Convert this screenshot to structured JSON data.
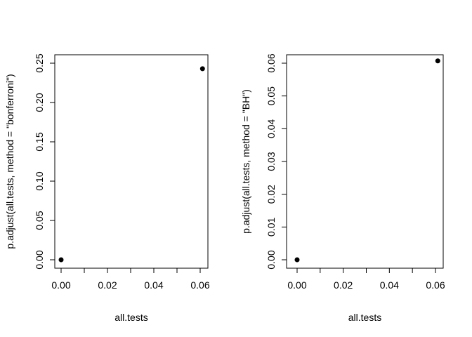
{
  "chart_data": [
    {
      "type": "scatter",
      "xlabel": "all.tests",
      "ylabel": "p.adjust(all.tests, method = \"bonferroni\")",
      "xlim": [
        0,
        0.06
      ],
      "ylim": [
        0,
        0.25
      ],
      "xticks": [
        0.0,
        0.01,
        0.02,
        0.03,
        0.04,
        0.05,
        0.06
      ],
      "xtick_labels": [
        "0.00",
        "",
        "0.02",
        "",
        "0.04",
        "",
        "0.06"
      ],
      "yticks": [
        0.0,
        0.05,
        0.1,
        0.15,
        0.2,
        0.25
      ],
      "ytick_labels": [
        "0.00",
        "0.05",
        "0.10",
        "0.15",
        "0.20",
        "0.25"
      ],
      "points": [
        {
          "x": 0.0,
          "y": 0.0
        },
        {
          "x": 0.061,
          "y": 0.243
        }
      ],
      "grid": false,
      "marker_color": "#000000"
    },
    {
      "type": "scatter",
      "xlabel": "all.tests",
      "ylabel": "p.adjust(all.tests, method = \"BH\")",
      "xlim": [
        0,
        0.06
      ],
      "ylim": [
        0,
        0.06
      ],
      "xticks": [
        0.0,
        0.01,
        0.02,
        0.03,
        0.04,
        0.05,
        0.06
      ],
      "xtick_labels": [
        "0.00",
        "",
        "0.02",
        "",
        "0.04",
        "",
        "0.06"
      ],
      "yticks": [
        0.0,
        0.01,
        0.02,
        0.03,
        0.04,
        0.05,
        0.06
      ],
      "ytick_labels": [
        "0.00",
        "0.01",
        "0.02",
        "0.03",
        "0.04",
        "0.05",
        "0.06"
      ],
      "points": [
        {
          "x": 0.0,
          "y": 0.0
        },
        {
          "x": 0.061,
          "y": 0.0607
        }
      ],
      "grid": false,
      "marker_color": "#000000"
    }
  ]
}
